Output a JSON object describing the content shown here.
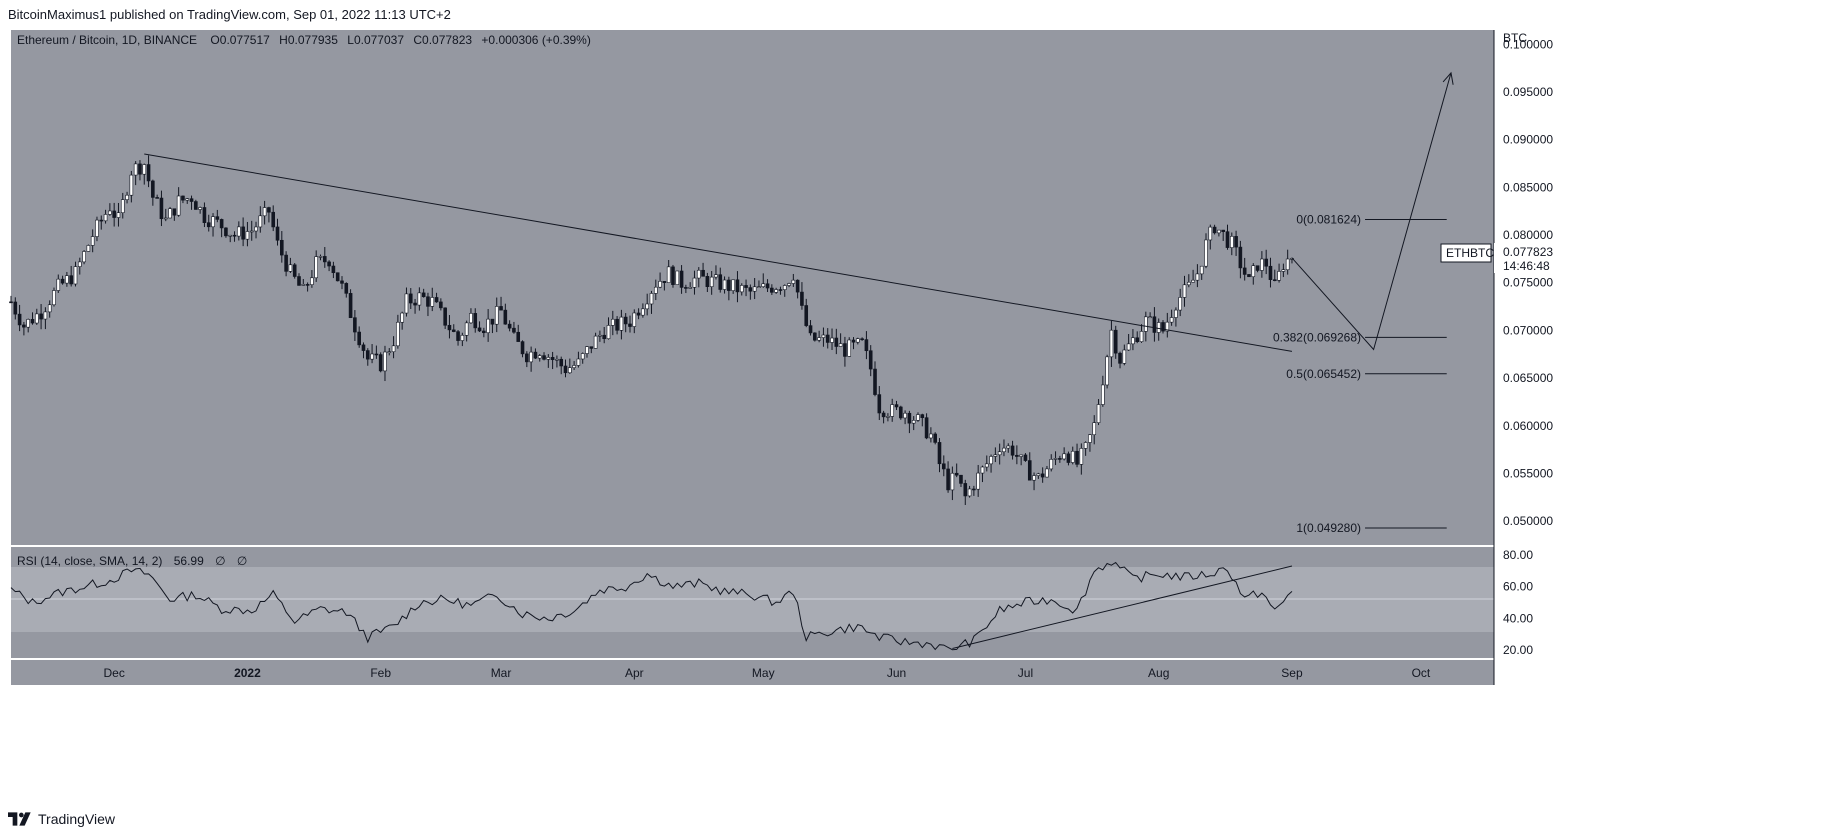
{
  "header": {
    "publish_line": "BitcoinMaximus1 published on TradingView.com, Sep 01, 2022 11:13 UTC+2"
  },
  "footer": {
    "brand": "TradingView"
  },
  "legend": {
    "symbol": "Ethereum / Bitcoin, 1D, BINANCE",
    "o_label": "O",
    "o_value": "0.077517",
    "h_label": "H",
    "h_value": "0.077935",
    "l_label": "L",
    "l_value": "0.077037",
    "c_label": "C",
    "c_value": "0.077823",
    "change": "+0.000306 (+0.39%)"
  },
  "price_axis": {
    "unit_label": "BTC",
    "ticks": [
      "0.100000",
      "0.095000",
      "0.090000",
      "0.085000",
      "0.080000",
      "0.075000",
      "0.070000",
      "0.065000",
      "0.060000",
      "0.055000",
      "0.050000"
    ]
  },
  "last_price": {
    "symbol_tag": "ETHBTC",
    "price": "0.077823",
    "countdown": "14:46:48"
  },
  "fib_labels": [
    "0(0.081624)",
    "0.382(0.069268)",
    "0.5(0.065452)",
    "1(0.049280)"
  ],
  "rsi": {
    "legend": "RSI (14, close, SMA, 14, 2)",
    "value": "56.99",
    "extra1": "∅",
    "extra2": "∅",
    "ticks": [
      "80.00",
      "60.00",
      "40.00",
      "20.00"
    ]
  },
  "time_axis": {
    "labels": [
      "Dec",
      "2022",
      "Feb",
      "Mar",
      "Apr",
      "May",
      "Jun",
      "Jul",
      "Aug",
      "Sep",
      "Oct"
    ]
  },
  "colors": {
    "chart_bg": "#9598a1",
    "rsi_band": "#a9acb4",
    "candle": "#131722",
    "rising_body": "#ffffff",
    "page_bg": "#ffffff"
  },
  "chart_data": {
    "type": "candlestick",
    "title": "Ethereum / Bitcoin, 1D, BINANCE",
    "ylabel": "BTC",
    "ylim": [
      0.0475,
      0.1015
    ],
    "x_range": [
      "2021-11-07",
      "2022-10-18"
    ],
    "close_path": [
      [
        "2021-11-07",
        0.073
      ],
      [
        "2021-11-10",
        0.0705
      ],
      [
        "2021-11-14",
        0.072
      ],
      [
        "2021-11-18",
        0.0745
      ],
      [
        "2021-11-22",
        0.076
      ],
      [
        "2021-11-26",
        0.08
      ],
      [
        "2021-11-30",
        0.083
      ],
      [
        "2021-12-02",
        0.0815
      ],
      [
        "2021-12-05",
        0.0868
      ],
      [
        "2021-12-08",
        0.0875
      ],
      [
        "2021-12-10",
        0.084
      ],
      [
        "2021-12-13",
        0.0815
      ],
      [
        "2021-12-16",
        0.0835
      ],
      [
        "2021-12-19",
        0.084
      ],
      [
        "2021-12-22",
        0.082
      ],
      [
        "2021-12-26",
        0.081
      ],
      [
        "2021-12-29",
        0.08
      ],
      [
        "2022-01-02",
        0.0805
      ],
      [
        "2022-01-06",
        0.0825
      ],
      [
        "2022-01-08",
        0.079
      ],
      [
        "2022-01-11",
        0.076
      ],
      [
        "2022-01-14",
        0.074
      ],
      [
        "2022-01-17",
        0.077
      ],
      [
        "2022-01-20",
        0.0775
      ],
      [
        "2022-01-23",
        0.0745
      ],
      [
        "2022-01-26",
        0.0705
      ],
      [
        "2022-01-29",
        0.067
      ],
      [
        "2022-02-01",
        0.0665
      ],
      [
        "2022-02-04",
        0.069
      ],
      [
        "2022-02-07",
        0.073
      ],
      [
        "2022-02-10",
        0.0735
      ],
      [
        "2022-02-13",
        0.073
      ],
      [
        "2022-02-16",
        0.071
      ],
      [
        "2022-02-19",
        0.069
      ],
      [
        "2022-02-22",
        0.0715
      ],
      [
        "2022-02-25",
        0.0705
      ],
      [
        "2022-03-01",
        0.072
      ],
      [
        "2022-03-04",
        0.069
      ],
      [
        "2022-03-07",
        0.0675
      ],
      [
        "2022-03-10",
        0.068
      ],
      [
        "2022-03-13",
        0.067
      ],
      [
        "2022-03-16",
        0.066
      ],
      [
        "2022-03-19",
        0.0665
      ],
      [
        "2022-03-22",
        0.0685
      ],
      [
        "2022-03-25",
        0.07
      ],
      [
        "2022-03-28",
        0.0705
      ],
      [
        "2022-03-31",
        0.071
      ],
      [
        "2022-04-03",
        0.073
      ],
      [
        "2022-04-06",
        0.075
      ],
      [
        "2022-04-09",
        0.076
      ],
      [
        "2022-04-12",
        0.075
      ],
      [
        "2022-04-16",
        0.0755
      ],
      [
        "2022-04-20",
        0.075
      ],
      [
        "2022-04-24",
        0.0745
      ],
      [
        "2022-04-28",
        0.074
      ],
      [
        "2022-05-02",
        0.0745
      ],
      [
        "2022-05-06",
        0.075
      ],
      [
        "2022-05-08",
        0.076
      ],
      [
        "2022-05-10",
        0.072
      ],
      [
        "2022-05-12",
        0.069
      ],
      [
        "2022-05-16",
        0.069
      ],
      [
        "2022-05-20",
        0.068
      ],
      [
        "2022-05-24",
        0.0685
      ],
      [
        "2022-05-26",
        0.066
      ],
      [
        "2022-05-28",
        0.062
      ],
      [
        "2022-05-31",
        0.0615
      ],
      [
        "2022-06-03",
        0.0615
      ],
      [
        "2022-06-06",
        0.0605
      ],
      [
        "2022-06-09",
        0.059
      ],
      [
        "2022-06-11",
        0.056
      ],
      [
        "2022-06-13",
        0.054
      ],
      [
        "2022-06-15",
        0.0545
      ],
      [
        "2022-06-17",
        0.0525
      ],
      [
        "2022-06-19",
        0.054
      ],
      [
        "2022-06-22",
        0.056
      ],
      [
        "2022-06-25",
        0.058
      ],
      [
        "2022-06-28",
        0.0575
      ],
      [
        "2022-07-01",
        0.0555
      ],
      [
        "2022-07-04",
        0.0545
      ],
      [
        "2022-07-07",
        0.056
      ],
      [
        "2022-07-10",
        0.0575
      ],
      [
        "2022-07-13",
        0.056
      ],
      [
        "2022-07-15",
        0.0575
      ],
      [
        "2022-07-17",
        0.06
      ],
      [
        "2022-07-19",
        0.065
      ],
      [
        "2022-07-21",
        0.07
      ],
      [
        "2022-07-23",
        0.067
      ],
      [
        "2022-07-26",
        0.069
      ],
      [
        "2022-07-29",
        0.071
      ],
      [
        "2022-08-02",
        0.07
      ],
      [
        "2022-08-05",
        0.073
      ],
      [
        "2022-08-08",
        0.0745
      ],
      [
        "2022-08-10",
        0.076
      ],
      [
        "2022-08-12",
        0.079
      ],
      [
        "2022-08-14",
        0.081
      ],
      [
        "2022-08-16",
        0.08
      ],
      [
        "2022-08-18",
        0.079
      ],
      [
        "2022-08-20",
        0.077
      ],
      [
        "2022-08-22",
        0.075
      ],
      [
        "2022-08-24",
        0.077
      ],
      [
        "2022-08-26",
        0.077
      ],
      [
        "2022-08-28",
        0.0745
      ],
      [
        "2022-08-30",
        0.077
      ],
      [
        "2022-09-01",
        0.0778
      ]
    ],
    "rsi_path": [
      [
        "2021-11-07",
        58
      ],
      [
        "2021-11-12",
        50
      ],
      [
        "2021-11-18",
        56
      ],
      [
        "2021-11-24",
        60
      ],
      [
        "2021-11-30",
        64
      ],
      [
        "2021-12-05",
        70
      ],
      [
        "2021-12-09",
        68
      ],
      [
        "2021-12-14",
        52
      ],
      [
        "2021-12-20",
        55
      ],
      [
        "2021-12-26",
        46
      ],
      [
        "2022-01-02",
        45
      ],
      [
        "2022-01-07",
        55
      ],
      [
        "2022-01-12",
        38
      ],
      [
        "2022-01-18",
        46
      ],
      [
        "2022-01-24",
        44
      ],
      [
        "2022-01-29",
        28
      ],
      [
        "2022-02-04",
        35
      ],
      [
        "2022-02-10",
        50
      ],
      [
        "2022-02-16",
        52
      ],
      [
        "2022-02-22",
        48
      ],
      [
        "2022-02-28",
        55
      ],
      [
        "2022-03-06",
        43
      ],
      [
        "2022-03-12",
        40
      ],
      [
        "2022-03-18",
        45
      ],
      [
        "2022-03-24",
        58
      ],
      [
        "2022-03-30",
        60
      ],
      [
        "2022-04-04",
        68
      ],
      [
        "2022-04-10",
        60
      ],
      [
        "2022-04-16",
        62
      ],
      [
        "2022-04-22",
        57
      ],
      [
        "2022-04-28",
        55
      ],
      [
        "2022-05-04",
        50
      ],
      [
        "2022-05-08",
        57
      ],
      [
        "2022-05-11",
        28
      ],
      [
        "2022-05-17",
        32
      ],
      [
        "2022-05-23",
        35
      ],
      [
        "2022-05-28",
        28
      ],
      [
        "2022-06-03",
        25
      ],
      [
        "2022-06-09",
        24
      ],
      [
        "2022-06-13",
        20
      ],
      [
        "2022-06-19",
        26
      ],
      [
        "2022-06-25",
        45
      ],
      [
        "2022-07-01",
        50
      ],
      [
        "2022-07-07",
        52
      ],
      [
        "2022-07-13",
        45
      ],
      [
        "2022-07-17",
        70
      ],
      [
        "2022-07-21",
        76
      ],
      [
        "2022-07-26",
        65
      ],
      [
        "2022-08-01",
        68
      ],
      [
        "2022-08-07",
        66
      ],
      [
        "2022-08-13",
        68
      ],
      [
        "2022-08-17",
        72
      ],
      [
        "2022-08-21",
        52
      ],
      [
        "2022-08-25",
        57
      ],
      [
        "2022-08-28",
        44
      ],
      [
        "2022-09-01",
        57
      ]
    ],
    "trendlines": [
      {
        "role": "price-descending",
        "from": [
          "2021-12-08",
          0.0885
        ],
        "to": [
          "2022-09-01",
          0.0678
        ]
      },
      {
        "role": "projection",
        "points": [
          [
            "2022-09-01",
            0.0776
          ],
          [
            "2022-09-20",
            0.068
          ],
          [
            "2022-10-08",
            0.097
          ]
        ]
      },
      {
        "role": "rsi-ascending",
        "from": [
          "2022-06-14",
          21
        ],
        "to": [
          "2022-09-01",
          73
        ]
      }
    ],
    "fib_levels": [
      {
        "ratio": "0",
        "price": 0.081624
      },
      {
        "ratio": "0.382",
        "price": 0.069268
      },
      {
        "ratio": "0.5",
        "price": 0.065452
      },
      {
        "ratio": "1",
        "price": 0.04928
      }
    ],
    "rsi_ylim": [
      15,
      85
    ],
    "rsi_bands": [
      30,
      50,
      70
    ]
  }
}
